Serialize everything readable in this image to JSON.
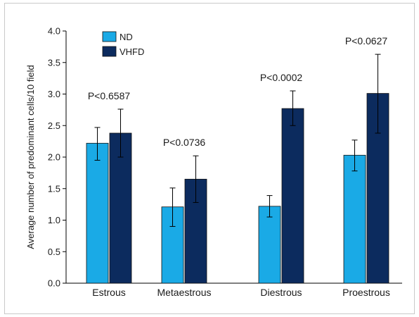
{
  "chart_data": {
    "type": "bar",
    "categories": [
      "Estrous",
      "Metaestrous",
      "Diestrous",
      "Proestrous"
    ],
    "series": [
      {
        "name": "ND",
        "color": "#1aaae6",
        "values": [
          2.22,
          1.21,
          1.22,
          2.03
        ],
        "error": [
          [
            1.95,
            2.47
          ],
          [
            0.9,
            1.51
          ],
          [
            1.05,
            1.39
          ],
          [
            1.78,
            2.27
          ]
        ]
      },
      {
        "name": "VHFD",
        "color": "#0c2b5e",
        "values": [
          2.38,
          1.65,
          2.77,
          3.01
        ],
        "error": [
          [
            2.0,
            2.76
          ],
          [
            1.28,
            2.02
          ],
          [
            2.5,
            3.05
          ],
          [
            2.38,
            3.63
          ]
        ]
      }
    ],
    "annotations": [
      "P<0.6587",
      "P<0.0736",
      "P<0.0002",
      "P<0.0627"
    ],
    "ylabel": "Average number of predominant cells/10 field",
    "xlabel": "",
    "title": "",
    "ylim": [
      0,
      4.0
    ],
    "yticks": [
      "0.0",
      "0.5",
      "1.0",
      "1.5",
      "2.0",
      "2.5",
      "3.0",
      "3.5",
      "4.0"
    ],
    "legend_position": "top-left",
    "grid": false
  }
}
